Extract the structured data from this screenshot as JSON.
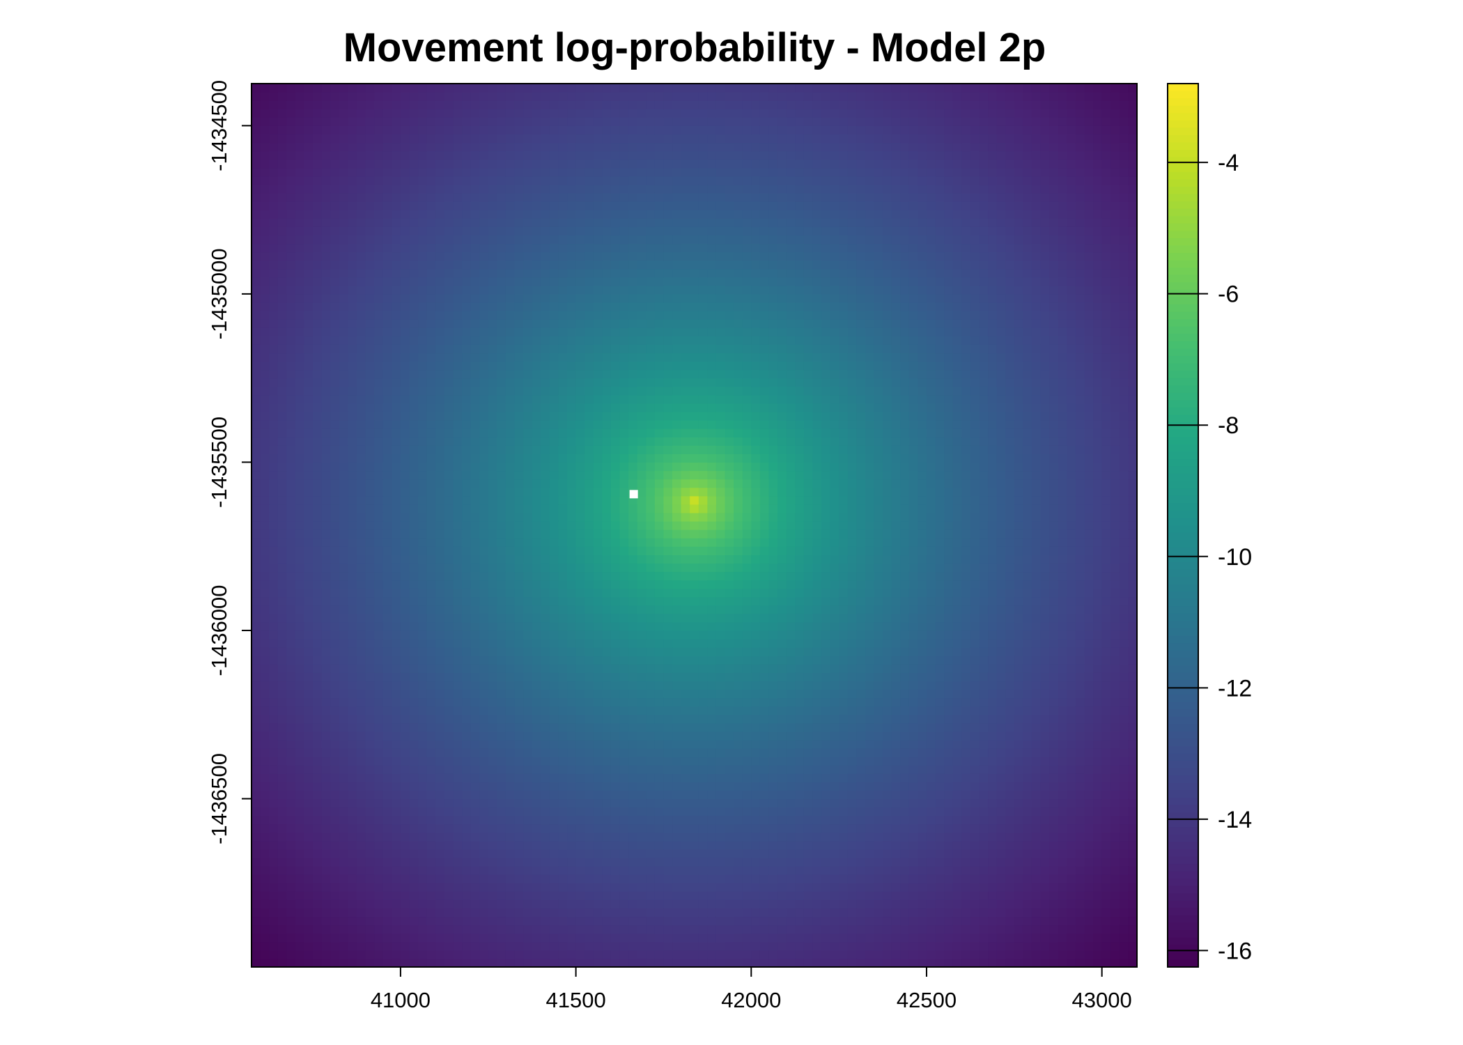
{
  "chart_data": {
    "type": "heatmap",
    "title": "Movement log-probability - Model 2p",
    "xlabel": "",
    "ylabel": "",
    "xlim": [
      40575,
      43100
    ],
    "ylim": [
      -1437000,
      -1434375
    ],
    "x_ticks": [
      41000,
      41500,
      42000,
      42500,
      43000
    ],
    "x_tick_labels": [
      "41000",
      "41500",
      "42000",
      "42500",
      "43000"
    ],
    "y_ticks": [
      -1434500,
      -1435000,
      -1435500,
      -1436000,
      -1436500
    ],
    "y_tick_labels": [
      "-1434500",
      "-1435000",
      "-1435500",
      "-1436000",
      "-1436500"
    ],
    "grid": false,
    "colormap": "viridis",
    "raster_cell_size": 25,
    "value_range": [
      -16.2,
      -2.8
    ],
    "peak": {
      "x": 41840,
      "y": -1435620,
      "value": -2.8
    },
    "marker": {
      "x": 41665,
      "y": -1435595,
      "color": "#ffffff"
    },
    "colorbar": {
      "ticks": [
        -4,
        -6,
        -8,
        -10,
        -12,
        -14,
        -16
      ],
      "tick_labels": [
        "-4",
        "-6",
        "-8",
        "-10",
        "-12",
        "-14",
        "-16"
      ],
      "range": [
        -16.25,
        -2.8
      ]
    }
  }
}
